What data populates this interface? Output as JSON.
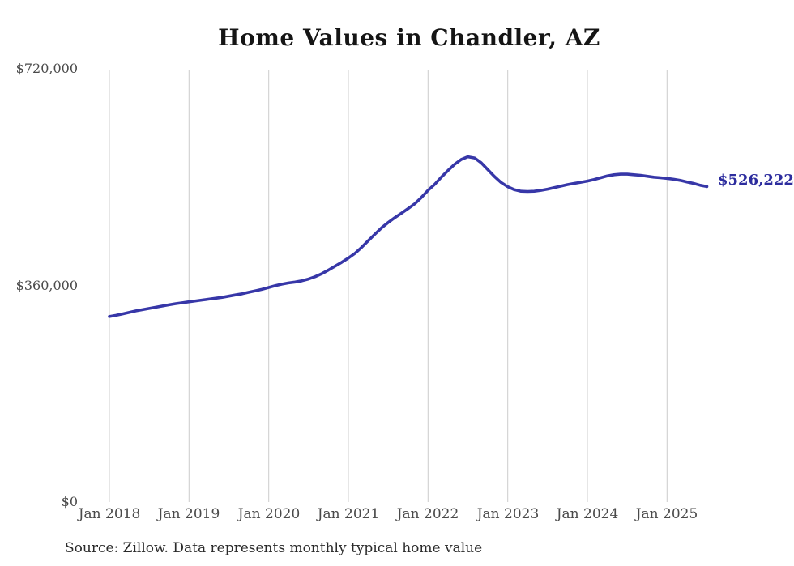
{
  "title": "Home Values in Chandler, AZ",
  "source_note": "Source: Zillow. Data represents monthly typical home value",
  "colors": {
    "line": "#3737a8",
    "end_label": "#2d2d9e",
    "gridline": "#cccccc",
    "axis_text": "#4a4a4a",
    "title_text": "#151515",
    "background": "#ffffff"
  },
  "chart_data": {
    "type": "line",
    "title": "Home Values in Chandler, AZ",
    "xlabel": "",
    "ylabel": "",
    "ylim": [
      0,
      720000
    ],
    "grid": "vertical-only",
    "legend": "none",
    "y_ticks": [
      {
        "value": 720000,
        "label": "$720,000"
      },
      {
        "value": 360000,
        "label": "$360,000"
      },
      {
        "value": 0,
        "label": "$0"
      }
    ],
    "x_tick_labels": [
      "Jan 2018",
      "Jan 2019",
      "Jan 2020",
      "Jan 2021",
      "Jan 2022",
      "Jan 2023",
      "Jan 2024",
      "Jan 2025"
    ],
    "latest_value": 526222,
    "latest_value_label": "$526,222",
    "series": [
      {
        "name": "Monthly typical home value",
        "x_start": "2018-01",
        "x_end": "2025-07",
        "x_freq": "monthly",
        "values": [
          309500,
          311500,
          314000,
          316500,
          319000,
          321000,
          323000,
          325000,
          327000,
          329000,
          331000,
          332500,
          334000,
          335500,
          337000,
          338500,
          340000,
          341500,
          343500,
          345500,
          347500,
          350000,
          352500,
          355000,
          358000,
          361000,
          363500,
          365500,
          367000,
          369000,
          372000,
          376000,
          381000,
          387000,
          393500,
          400000,
          407000,
          415000,
          425000,
          436000,
          447000,
          457500,
          466500,
          474500,
          482000,
          489500,
          497500,
          508000,
          520000,
          530000,
          542000,
          553000,
          563500,
          571500,
          576000,
          574000,
          566000,
          554500,
          543000,
          533000,
          526000,
          521000,
          518500,
          518000,
          518500,
          520000,
          522000,
          524500,
          527000,
          529500,
          531500,
          533500,
          535500,
          538000,
          541000,
          544000,
          546000,
          547000,
          547000,
          546000,
          545000,
          543500,
          542000,
          541000,
          540000,
          538500,
          536500,
          534000,
          531500,
          528500,
          526222
        ]
      }
    ]
  }
}
